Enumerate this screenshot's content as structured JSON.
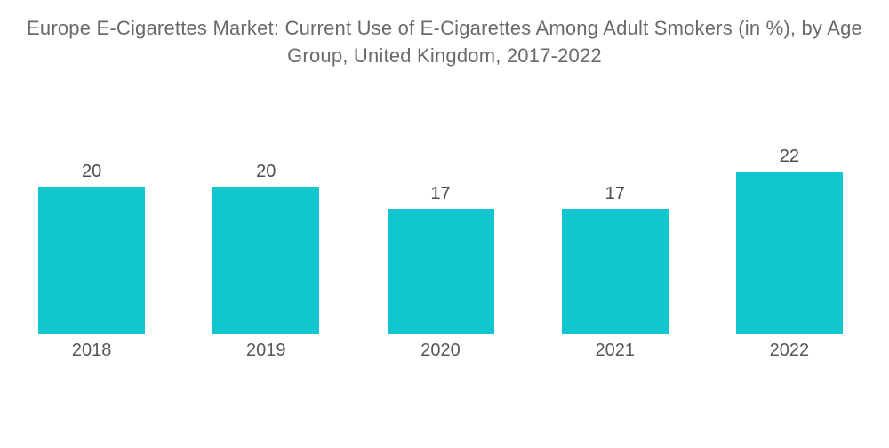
{
  "chart_data": {
    "type": "bar",
    "title": "Europe E-Cigarettes Market: Current Use of E-Cigarettes Among Adult Smokers (in %), by Age Group, United Kingdom, 2017-2022",
    "categories": [
      "2018",
      "2019",
      "2020",
      "2021",
      "2022"
    ],
    "values": [
      20,
      20,
      17,
      17,
      22
    ],
    "xlabel": "",
    "ylabel": "",
    "ylim": [
      0,
      24
    ],
    "grid": false,
    "legend": false,
    "bar_color": "#12c6cf",
    "value_label_color": "#4d4d4d",
    "axis_label_color": "#575757",
    "title_color": "#6a6a6a",
    "background_color": "#ffffff"
  }
}
